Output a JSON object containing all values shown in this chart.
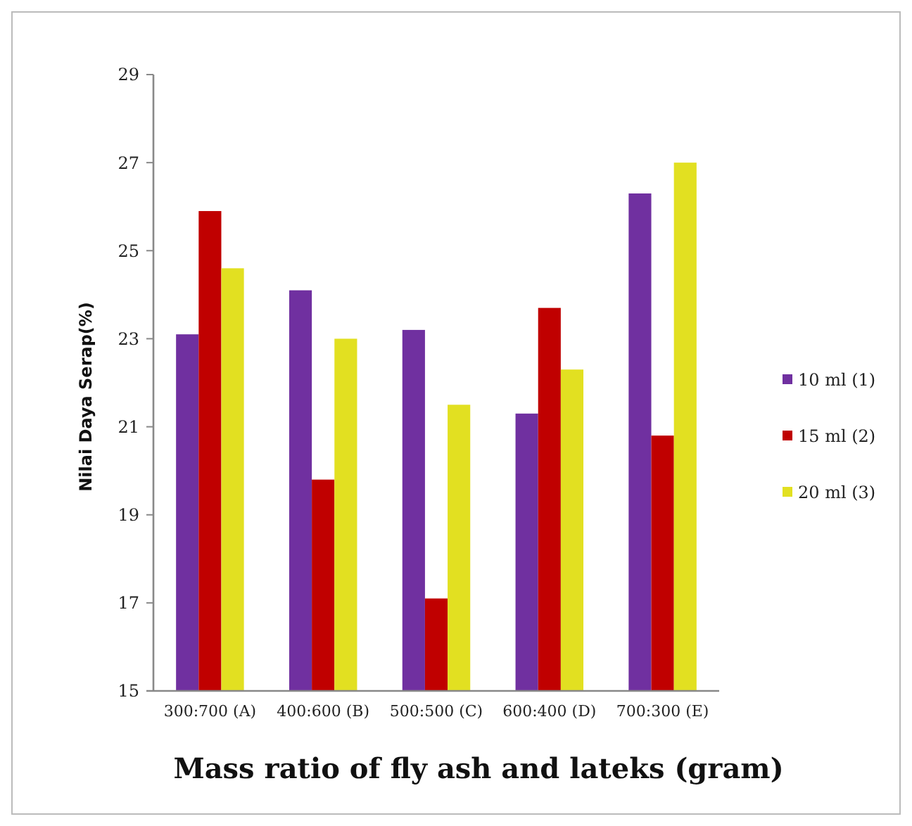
{
  "chart_data": {
    "type": "bar",
    "xlabel": "Mass ratio of fly ash and lateks (gram)",
    "ylabel": "Nilai Daya Serap(%)",
    "categories": [
      "300:700 (A)",
      "400:600 (B)",
      "500:500 (C)",
      "600:400 (D)",
      "700:300 (E)"
    ],
    "series": [
      {
        "name": "10 ml (1)",
        "color": "#7030a0",
        "values": [
          23.1,
          24.1,
          23.2,
          21.3,
          26.3
        ]
      },
      {
        "name": "15 ml (2)",
        "color": "#c00000",
        "values": [
          25.9,
          19.8,
          17.1,
          23.7,
          20.8
        ]
      },
      {
        "name": "20 ml (3)",
        "color": "#e2e021",
        "values": [
          24.6,
          23.0,
          21.5,
          22.3,
          27.0
        ]
      }
    ],
    "ylim": [
      15,
      29
    ],
    "yticks": [
      15,
      17,
      19,
      21,
      23,
      25,
      27,
      29
    ],
    "grid": false,
    "legend": "right"
  }
}
